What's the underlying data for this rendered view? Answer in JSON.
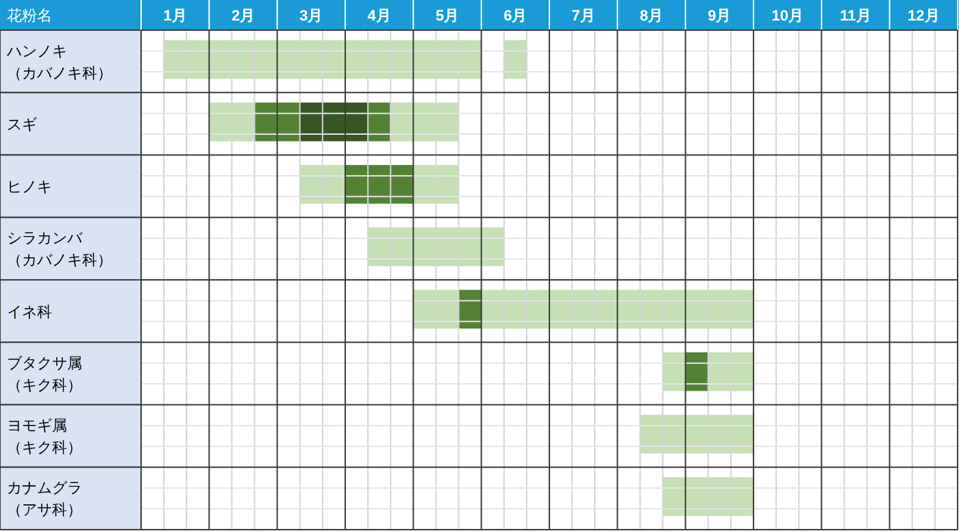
{
  "chart_data": {
    "type": "bar",
    "orientation": "horizontal",
    "ylabel": "花粉名",
    "categories": [
      "ハンノキ（カバノキ科）",
      "スギ",
      "ヒノキ",
      "シラカンバ（カバノキ科）",
      "イネ科",
      "ブタクサ属（キク科）",
      "ヨモギ属（キク科）",
      "カナムグラ（アサ科）"
    ],
    "xlim": [
      0,
      12
    ],
    "xticks": [
      {
        "value": 0.5,
        "label": "1月"
      },
      {
        "value": 1.5,
        "label": "2月"
      },
      {
        "value": 2.5,
        "label": "3月"
      },
      {
        "value": 3.5,
        "label": "4月"
      },
      {
        "value": 4.5,
        "label": "5月"
      },
      {
        "value": 5.5,
        "label": "6月"
      },
      {
        "value": 6.5,
        "label": "7月"
      },
      {
        "value": 7.5,
        "label": "8月"
      },
      {
        "value": 8.5,
        "label": "9月"
      },
      {
        "value": 9.5,
        "label": "10月"
      },
      {
        "value": 10.5,
        "label": "11月"
      },
      {
        "value": 11.5,
        "label": "12月"
      }
    ],
    "grid": true,
    "series": [
      {
        "color": "#c5e0b4",
        "base": [
          0.33,
          1.0,
          2.33,
          3.33,
          4.0,
          7.67,
          7.33,
          7.67
        ],
        "values": [
          4.67,
          0.67,
          0.67,
          2.0,
          0.67,
          0.33,
          1.67,
          1.33
        ]
      },
      {
        "color": "#548235",
        "base": [
          null,
          1.67,
          3.0,
          null,
          4.67,
          8.0,
          null,
          null
        ],
        "values": [
          null,
          0.67,
          1.0,
          null,
          0.33,
          0.33,
          null,
          null
        ]
      },
      {
        "color": "#375623",
        "base": [
          null,
          2.33,
          null,
          null,
          null,
          null,
          null,
          null
        ],
        "values": [
          null,
          1.0,
          null,
          null,
          null,
          null,
          null,
          null
        ]
      },
      {
        "color": "#548235",
        "base": [
          null,
          3.33,
          null,
          null,
          null,
          null,
          null,
          null
        ],
        "values": [
          null,
          0.33,
          null,
          null,
          null,
          null,
          null,
          null
        ]
      },
      {
        "color": "#c5e0b4",
        "base": [
          5.33,
          3.67,
          4.0,
          null,
          5.0,
          8.33,
          null,
          null
        ],
        "values": [
          0.33,
          1.0,
          0.67,
          null,
          4.0,
          0.67,
          null,
          null
        ]
      }
    ]
  }
}
